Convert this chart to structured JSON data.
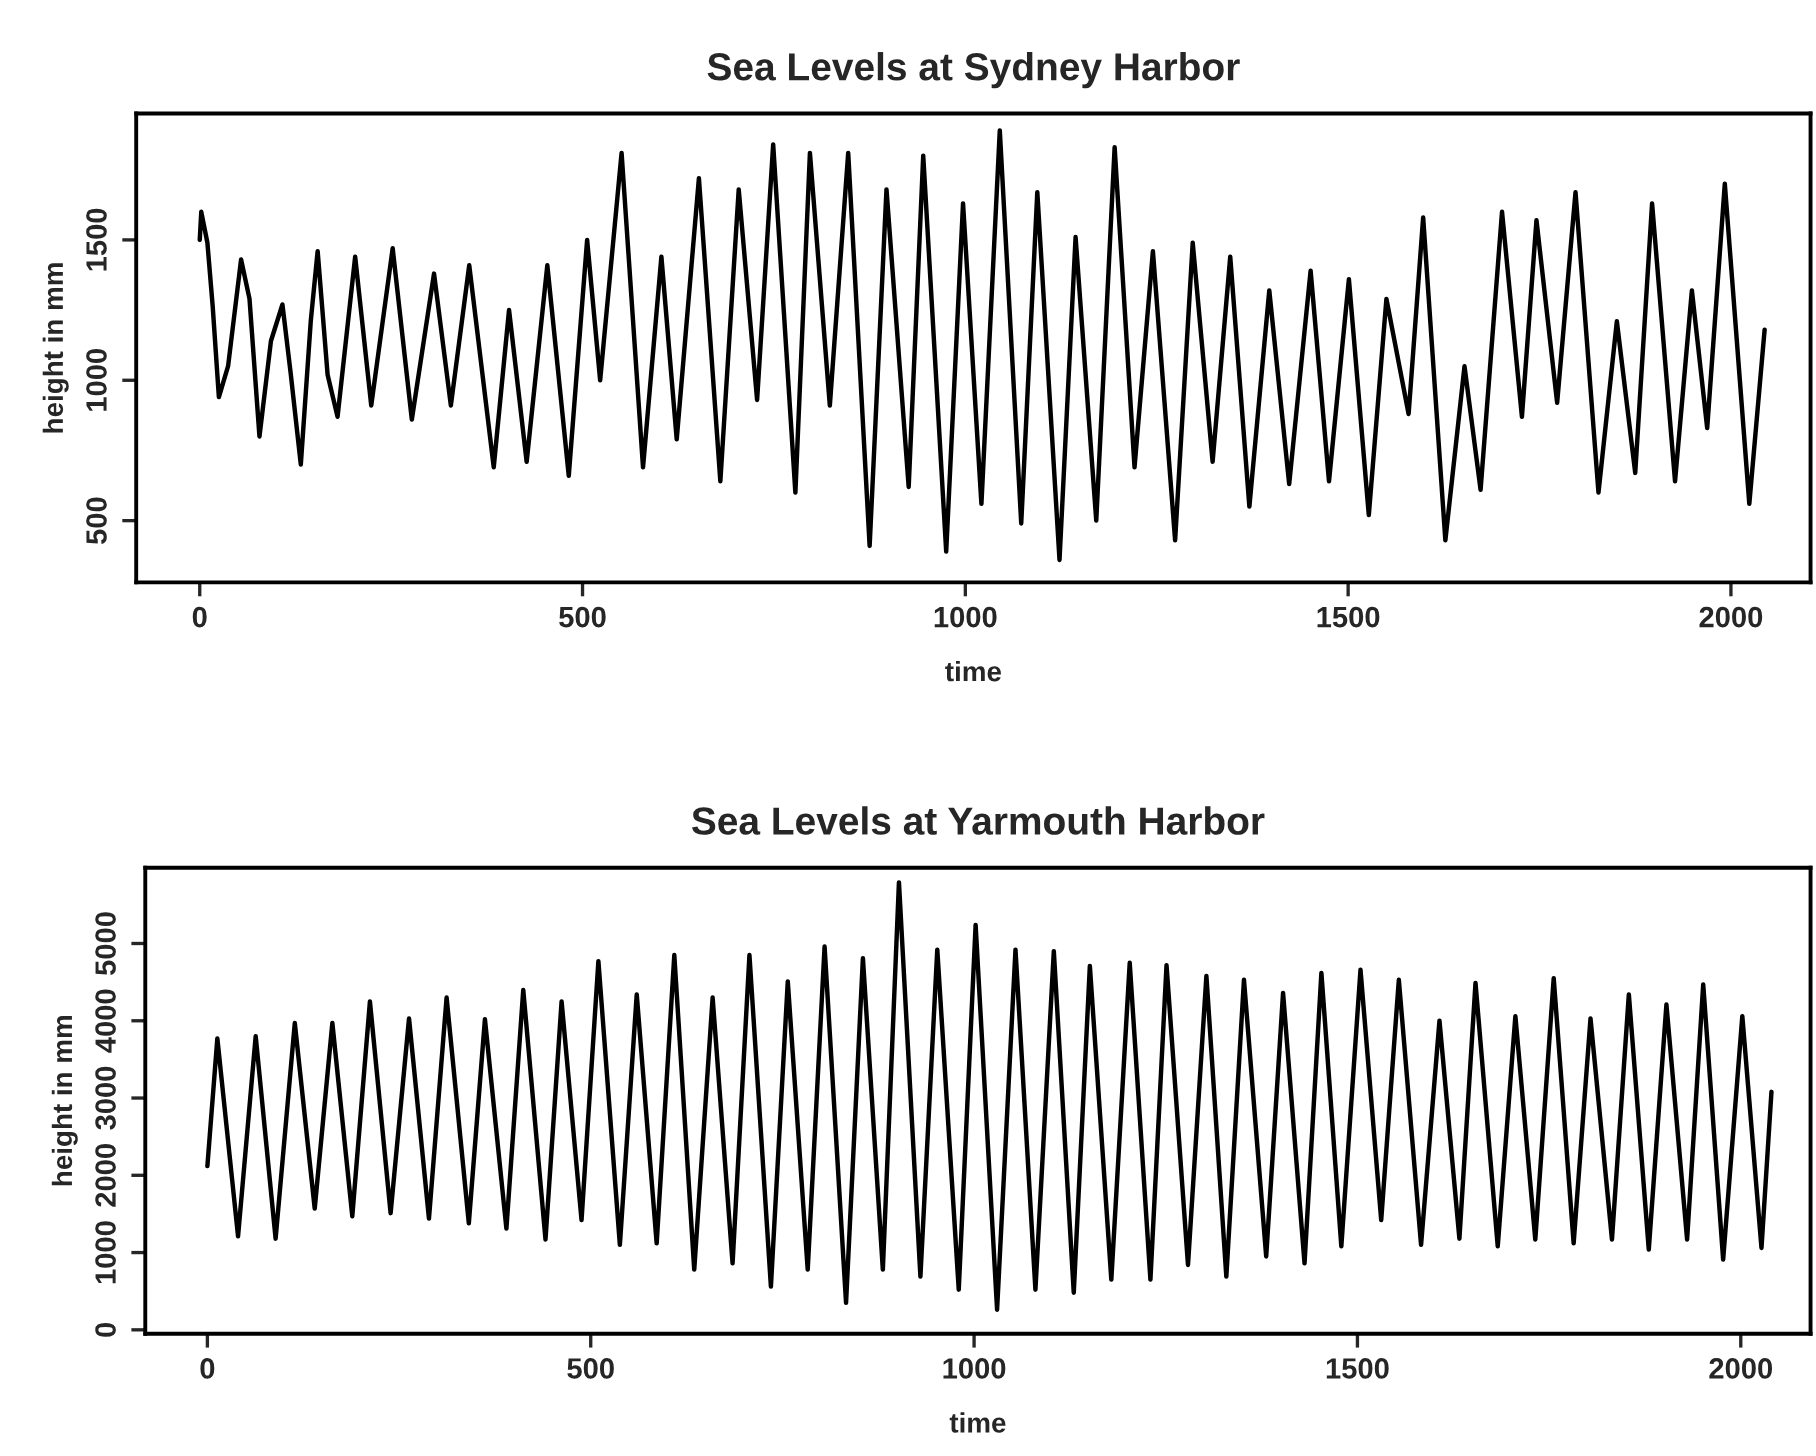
{
  "chart_data": [
    {
      "type": "line",
      "title": "Sea Levels at Sydney Harbor",
      "xlabel": "time",
      "ylabel": "height in mm",
      "xlim": [
        -83,
        2104
      ],
      "ylim": [
        280,
        1950
      ],
      "xticks": [
        0,
        500,
        1000,
        1500,
        2000
      ],
      "yticks": [
        500,
        1000,
        1500
      ],
      "series": [
        {
          "color": "#000000",
          "x": [
            0,
            2,
            10,
            17,
            25,
            37,
            54,
            65,
            78,
            93,
            108,
            119,
            132,
            145,
            154,
            167,
            180,
            203,
            224,
            252,
            277,
            306,
            328,
            352,
            384,
            404,
            427,
            454,
            482,
            506,
            523,
            551,
            579,
            603,
            623,
            652,
            680,
            704,
            728,
            749,
            778,
            797,
            823,
            847,
            875,
            897,
            926,
            945,
            975,
            997,
            1021,
            1045,
            1073,
            1094,
            1123,
            1144,
            1171,
            1195,
            1221,
            1245,
            1274,
            1297,
            1323,
            1346,
            1371,
            1397,
            1423,
            1451,
            1475,
            1501,
            1527,
            1550,
            1579,
            1598,
            1627,
            1652,
            1673,
            1701,
            1727,
            1746,
            1773,
            1797,
            1827,
            1851,
            1875,
            1897,
            1927,
            1949,
            1969,
            1992,
            2024,
            2044
          ],
          "values": [
            1500,
            1600,
            1490,
            1260,
            940,
            1050,
            1430,
            1290,
            800,
            1140,
            1270,
            1020,
            700,
            1210,
            1460,
            1020,
            870,
            1440,
            910,
            1470,
            860,
            1380,
            910,
            1410,
            690,
            1250,
            710,
            1410,
            660,
            1500,
            1000,
            1810,
            690,
            1440,
            790,
            1720,
            640,
            1680,
            930,
            1840,
            600,
            1810,
            910,
            1810,
            410,
            1680,
            620,
            1800,
            390,
            1630,
            560,
            1890,
            490,
            1670,
            360,
            1510,
            500,
            1830,
            690,
            1460,
            430,
            1490,
            710,
            1440,
            550,
            1320,
            630,
            1390,
            640,
            1360,
            520,
            1290,
            880,
            1580,
            430,
            1050,
            610,
            1600,
            870,
            1570,
            920,
            1670,
            600,
            1210,
            670,
            1630,
            640,
            1320,
            830,
            1700,
            560,
            1180
          ]
        }
      ]
    },
    {
      "type": "line",
      "title": "Sea Levels at Yarmouth Harbor",
      "xlabel": "time",
      "ylabel": "height in mm",
      "xlim": [
        -81,
        2091
      ],
      "ylim": [
        -50,
        5980
      ],
      "xticks": [
        0,
        500,
        1000,
        1500,
        2000
      ],
      "yticks": [
        0,
        1000,
        2000,
        3000,
        4000,
        5000
      ],
      "series": [
        {
          "color": "#000000",
          "x": [
            0,
            13,
            40,
            63,
            89,
            114,
            140,
            163,
            189,
            212,
            239,
            263,
            289,
            312,
            341,
            362,
            390,
            412,
            441,
            462,
            488,
            510,
            538,
            560,
            586,
            609,
            635,
            659,
            685,
            707,
            735,
            757,
            783,
            805,
            833,
            855,
            881,
            902,
            930,
            952,
            980,
            1002,
            1030,
            1054,
            1080,
            1104,
            1130,
            1151,
            1179,
            1203,
            1230,
            1251,
            1279,
            1303,
            1329,
            1352,
            1381,
            1403,
            1431,
            1453,
            1479,
            1504,
            1531,
            1554,
            1583,
            1607,
            1633,
            1654,
            1683,
            1706,
            1732,
            1756,
            1782,
            1804,
            1832,
            1854,
            1880,
            1903,
            1930,
            1951,
            1977,
            2002,
            2027,
            2040
          ],
          "values": [
            2120,
            3770,
            1210,
            3800,
            1180,
            3970,
            1570,
            3970,
            1470,
            4250,
            1510,
            4030,
            1440,
            4300,
            1380,
            4020,
            1310,
            4400,
            1170,
            4250,
            1420,
            4770,
            1100,
            4340,
            1120,
            4850,
            780,
            4300,
            860,
            4850,
            560,
            4510,
            780,
            4960,
            350,
            4810,
            780,
            5790,
            690,
            4920,
            520,
            5240,
            260,
            4920,
            520,
            4900,
            480,
            4710,
            650,
            4750,
            650,
            4720,
            840,
            4580,
            690,
            4530,
            950,
            4360,
            860,
            4620,
            1080,
            4660,
            1420,
            4530,
            1100,
            4000,
            1180,
            4490,
            1080,
            4060,
            1170,
            4550,
            1120,
            4030,
            1170,
            4340,
            1040,
            4210,
            1170,
            4470,
            910,
            4060,
            1060,
            3080
          ]
        }
      ]
    }
  ]
}
